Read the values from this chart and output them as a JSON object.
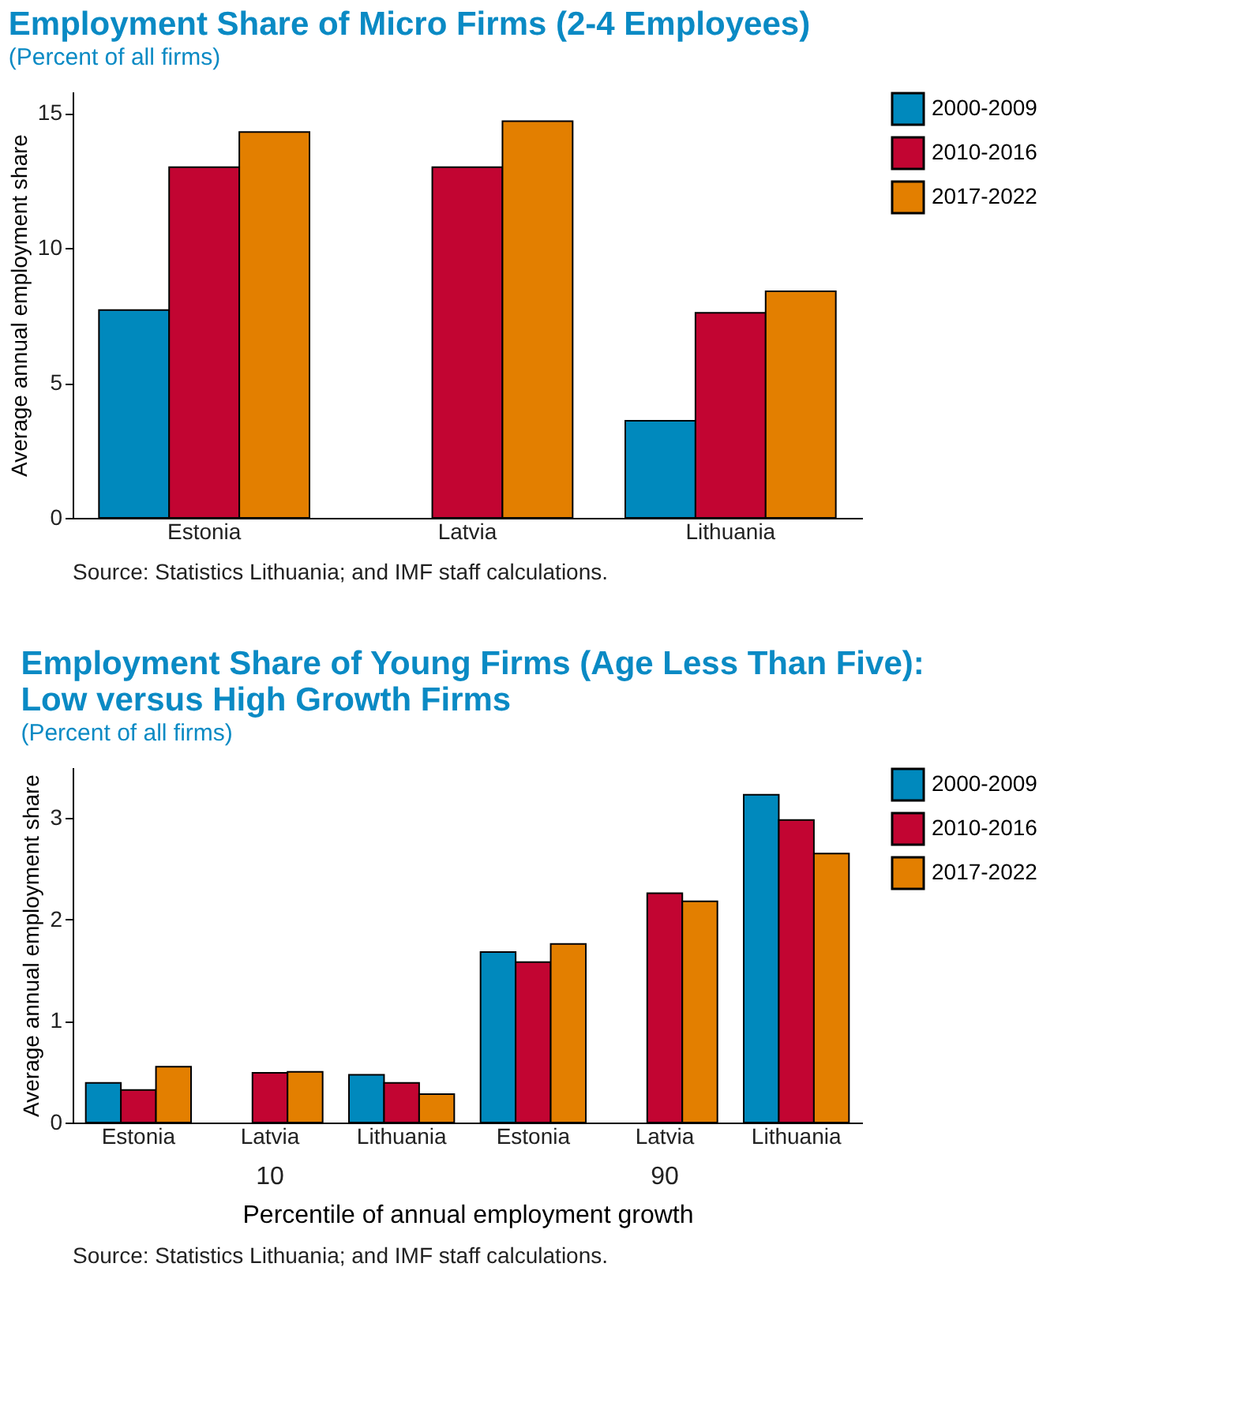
{
  "chart_data": [
    {
      "type": "bar",
      "title": "Employment Share of Micro Firms (2-4 Employees)",
      "subtitle": "(Percent of all firms)",
      "ylabel": "Average annual employment share",
      "categories": [
        "Estonia",
        "Latvia",
        "Lithuania"
      ],
      "series": [
        {
          "name": "2000-2009",
          "color": "#0089bd",
          "values": [
            7.7,
            null,
            3.6
          ]
        },
        {
          "name": "2010-2016",
          "color": "#c20532",
          "values": [
            13.0,
            13.0,
            7.6
          ]
        },
        {
          "name": "2017-2022",
          "color": "#e37f00",
          "values": [
            14.3,
            14.7,
            8.4
          ]
        }
      ],
      "ylim": [
        0,
        15.8
      ],
      "yticks": [
        0,
        5,
        10,
        15
      ],
      "grid": false,
      "legend": "right",
      "annotations": [
        "Source: Statistics Lithuania; and IMF staff calculations."
      ]
    },
    {
      "type": "bar",
      "title": "Employment Share of Young Firms (Age Less Than Five): Low versus High Growth Firms",
      "subtitle": "(Percent of all firms)",
      "ylabel": "Average annual employment share",
      "xlabel": "Percentile of annual employment growth",
      "categories": [
        "Estonia",
        "Latvia",
        "Lithuania",
        "Estonia",
        "Latvia",
        "Lithuania"
      ],
      "series": [
        {
          "name": "2000-2009",
          "color": "#0089bd",
          "values": [
            0.39,
            null,
            0.47,
            1.68,
            null,
            3.23
          ]
        },
        {
          "name": "2010-2016",
          "color": "#c20532",
          "values": [
            0.32,
            0.49,
            0.39,
            1.58,
            2.26,
            2.98
          ]
        },
        {
          "name": "2017-2022",
          "color": "#e37f00",
          "values": [
            0.55,
            0.5,
            0.28,
            1.76,
            2.18,
            2.65
          ]
        }
      ],
      "ylim": [
        0,
        3.5
      ],
      "yticks": [
        0,
        1,
        2,
        3
      ],
      "grid": false,
      "legend": "right",
      "annotations": [
        "10",
        "90",
        "Source: Statistics Lithuania; and IMF staff calculations."
      ]
    }
  ]
}
